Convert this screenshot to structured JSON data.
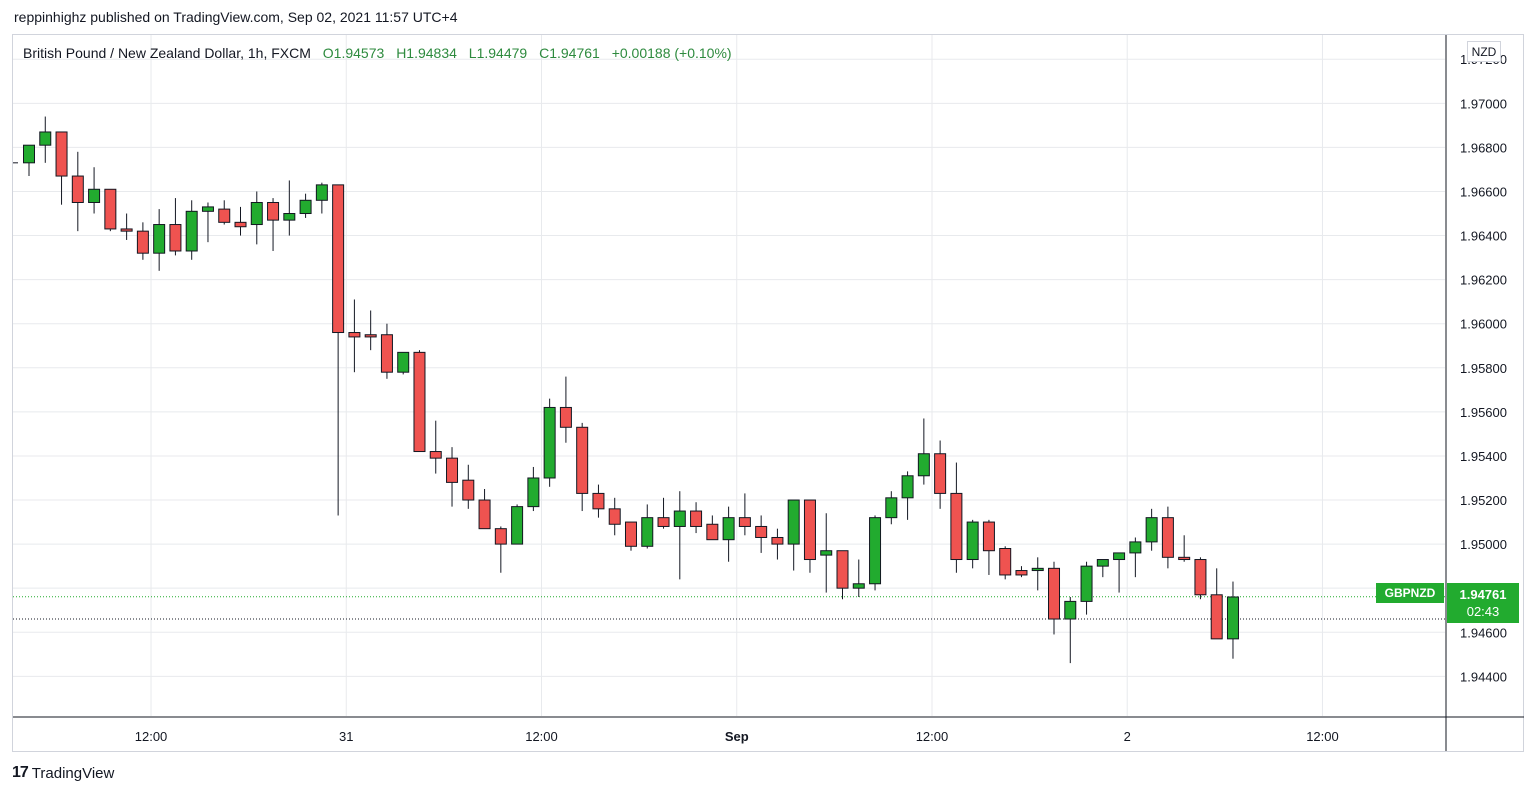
{
  "header": {
    "published_line": "reppinhighz published on TradingView.com, Sep 02, 2021 11:57 UTC+4"
  },
  "legend": {
    "symbol_desc": "British Pound / New Zealand Dollar, 1h, FXCM",
    "open": "O1.94573",
    "high": "H1.94834",
    "low": "L1.94479",
    "close": "C1.94761",
    "change": "+0.00188 (+0.10%)"
  },
  "currency": "NZD",
  "price_tag": {
    "symbol": "GBPNZD",
    "price": "1.94761",
    "countdown": "02:43"
  },
  "footer": {
    "logo": "17",
    "brand": "TradingView"
  },
  "colors": {
    "up": "#22ab2f",
    "down": "#ef5350",
    "grid": "#e8eaed",
    "axis_text": "#131722"
  },
  "chart_data": {
    "type": "candlestick",
    "title": "British Pound / New Zealand Dollar, 1h, FXCM",
    "x_tick_labels": [
      "12:00",
      "31",
      "12:00",
      "Sep",
      "12:00",
      "2",
      "12:00"
    ],
    "x_tick_index": [
      7.5,
      19.5,
      31.5,
      43.5,
      55.5,
      67.5,
      79.5
    ],
    "y_tick_labels": [
      "1.97200",
      "1.97000",
      "1.96800",
      "1.96600",
      "1.96400",
      "1.96200",
      "1.96000",
      "1.95800",
      "1.95600",
      "1.95400",
      "1.95200",
      "1.95000",
      "1.94800",
      "1.94600",
      "1.94400"
    ],
    "ylim": [
      1.9422,
      1.9731
    ],
    "last_price": 1.94761,
    "dotted_level": 1.9466,
    "candles": [
      {
        "o": 1.9673,
        "h": 1.9681,
        "l": 1.9667,
        "c": 1.9681
      },
      {
        "o": 1.9681,
        "h": 1.9694,
        "l": 1.9673,
        "c": 1.9687
      },
      {
        "o": 1.9687,
        "h": 1.9687,
        "l": 1.9654,
        "c": 1.9667
      },
      {
        "o": 1.9667,
        "h": 1.9678,
        "l": 1.9642,
        "c": 1.9655
      },
      {
        "o": 1.9655,
        "h": 1.9671,
        "l": 1.965,
        "c": 1.9661
      },
      {
        "o": 1.9661,
        "h": 1.9661,
        "l": 1.9642,
        "c": 1.9643
      },
      {
        "o": 1.9643,
        "h": 1.965,
        "l": 1.9638,
        "c": 1.9642
      },
      {
        "o": 1.9642,
        "h": 1.9646,
        "l": 1.9629,
        "c": 1.9632
      },
      {
        "o": 1.9632,
        "h": 1.9652,
        "l": 1.9624,
        "c": 1.9645
      },
      {
        "o": 1.9645,
        "h": 1.9657,
        "l": 1.9631,
        "c": 1.9633
      },
      {
        "o": 1.9633,
        "h": 1.9656,
        "l": 1.9629,
        "c": 1.9651
      },
      {
        "o": 1.9651,
        "h": 1.9655,
        "l": 1.9637,
        "c": 1.9653
      },
      {
        "o": 1.9652,
        "h": 1.9656,
        "l": 1.9645,
        "c": 1.9646
      },
      {
        "o": 1.9646,
        "h": 1.9653,
        "l": 1.964,
        "c": 1.9644
      },
      {
        "o": 1.9645,
        "h": 1.966,
        "l": 1.9636,
        "c": 1.9655
      },
      {
        "o": 1.9655,
        "h": 1.9657,
        "l": 1.9633,
        "c": 1.9647
      },
      {
        "o": 1.9647,
        "h": 1.9665,
        "l": 1.964,
        "c": 1.965
      },
      {
        "o": 1.965,
        "h": 1.9659,
        "l": 1.9648,
        "c": 1.9656
      },
      {
        "o": 1.9656,
        "h": 1.9664,
        "l": 1.965,
        "c": 1.9663
      },
      {
        "o": 1.9663,
        "h": 1.9663,
        "l": 1.9513,
        "c": 1.9596
      },
      {
        "o": 1.9596,
        "h": 1.9611,
        "l": 1.9578,
        "c": 1.9594
      },
      {
        "o": 1.9595,
        "h": 1.9606,
        "l": 1.9588,
        "c": 1.9594
      },
      {
        "o": 1.9595,
        "h": 1.96,
        "l": 1.9575,
        "c": 1.9578
      },
      {
        "o": 1.9578,
        "h": 1.9587,
        "l": 1.9577,
        "c": 1.9587
      },
      {
        "o": 1.9587,
        "h": 1.9588,
        "l": 1.9542,
        "c": 1.9542
      },
      {
        "o": 1.9542,
        "h": 1.9556,
        "l": 1.9532,
        "c": 1.9539
      },
      {
        "o": 1.9539,
        "h": 1.9544,
        "l": 1.9517,
        "c": 1.9528
      },
      {
        "o": 1.9529,
        "h": 1.9536,
        "l": 1.9516,
        "c": 1.952
      },
      {
        "o": 1.952,
        "h": 1.9525,
        "l": 1.9508,
        "c": 1.9507
      },
      {
        "o": 1.9507,
        "h": 1.9508,
        "l": 1.9487,
        "c": 1.95
      },
      {
        "o": 1.95,
        "h": 1.9518,
        "l": 1.9501,
        "c": 1.9517
      },
      {
        "o": 1.9517,
        "h": 1.9535,
        "l": 1.9515,
        "c": 1.953
      },
      {
        "o": 1.953,
        "h": 1.9566,
        "l": 1.9526,
        "c": 1.9562
      },
      {
        "o": 1.9562,
        "h": 1.9576,
        "l": 1.9546,
        "c": 1.9553
      },
      {
        "o": 1.9553,
        "h": 1.9555,
        "l": 1.9515,
        "c": 1.9523
      },
      {
        "o": 1.9523,
        "h": 1.9527,
        "l": 1.9512,
        "c": 1.9516
      },
      {
        "o": 1.9516,
        "h": 1.9521,
        "l": 1.9504,
        "c": 1.9509
      },
      {
        "o": 1.951,
        "h": 1.951,
        "l": 1.9497,
        "c": 1.9499
      },
      {
        "o": 1.9499,
        "h": 1.9518,
        "l": 1.9498,
        "c": 1.9512
      },
      {
        "o": 1.9512,
        "h": 1.9521,
        "l": 1.9507,
        "c": 1.9508
      },
      {
        "o": 1.9508,
        "h": 1.9524,
        "l": 1.9484,
        "c": 1.9515
      },
      {
        "o": 1.9515,
        "h": 1.9519,
        "l": 1.9505,
        "c": 1.9508
      },
      {
        "o": 1.9509,
        "h": 1.9513,
        "l": 1.9502,
        "c": 1.9502
      },
      {
        "o": 1.9502,
        "h": 1.9517,
        "l": 1.9492,
        "c": 1.9512
      },
      {
        "o": 1.9512,
        "h": 1.9523,
        "l": 1.9504,
        "c": 1.9508
      },
      {
        "o": 1.9508,
        "h": 1.9513,
        "l": 1.9496,
        "c": 1.9503
      },
      {
        "o": 1.9503,
        "h": 1.9507,
        "l": 1.9493,
        "c": 1.95
      },
      {
        "o": 1.95,
        "h": 1.9518,
        "l": 1.9488,
        "c": 1.952
      },
      {
        "o": 1.952,
        "h": 1.952,
        "l": 1.9487,
        "c": 1.9493
      },
      {
        "o": 1.9495,
        "h": 1.9514,
        "l": 1.9478,
        "c": 1.9497
      },
      {
        "o": 1.9497,
        "h": 1.9497,
        "l": 1.9475,
        "c": 1.948
      },
      {
        "o": 1.948,
        "h": 1.9493,
        "l": 1.9476,
        "c": 1.9482
      },
      {
        "o": 1.9482,
        "h": 1.9513,
        "l": 1.9479,
        "c": 1.9512
      },
      {
        "o": 1.9512,
        "h": 1.9524,
        "l": 1.9509,
        "c": 1.9521
      },
      {
        "o": 1.9521,
        "h": 1.9533,
        "l": 1.9511,
        "c": 1.9531
      },
      {
        "o": 1.9531,
        "h": 1.9557,
        "l": 1.9527,
        "c": 1.9541
      },
      {
        "o": 1.9541,
        "h": 1.9547,
        "l": 1.9516,
        "c": 1.9523
      },
      {
        "o": 1.9523,
        "h": 1.9537,
        "l": 1.9487,
        "c": 1.9493
      },
      {
        "o": 1.9493,
        "h": 1.9511,
        "l": 1.9489,
        "c": 1.951
      },
      {
        "o": 1.951,
        "h": 1.9511,
        "l": 1.9486,
        "c": 1.9497
      },
      {
        "o": 1.9498,
        "h": 1.9499,
        "l": 1.9484,
        "c": 1.9486
      },
      {
        "o": 1.9488,
        "h": 1.949,
        "l": 1.9485,
        "c": 1.9486
      },
      {
        "o": 1.9488,
        "h": 1.9494,
        "l": 1.9479,
        "c": 1.9489
      },
      {
        "o": 1.9489,
        "h": 1.9492,
        "l": 1.9459,
        "c": 1.9466
      },
      {
        "o": 1.9466,
        "h": 1.9476,
        "l": 1.9446,
        "c": 1.9474
      },
      {
        "o": 1.9474,
        "h": 1.9492,
        "l": 1.9468,
        "c": 1.949
      },
      {
        "o": 1.949,
        "h": 1.9493,
        "l": 1.9485,
        "c": 1.9493
      },
      {
        "o": 1.9493,
        "h": 1.9496,
        "l": 1.9478,
        "c": 1.9496
      },
      {
        "o": 1.9496,
        "h": 1.9503,
        "l": 1.9485,
        "c": 1.9501
      },
      {
        "o": 1.9501,
        "h": 1.9516,
        "l": 1.9497,
        "c": 1.9512
      },
      {
        "o": 1.9512,
        "h": 1.9517,
        "l": 1.9489,
        "c": 1.9494
      },
      {
        "o": 1.9494,
        "h": 1.9504,
        "l": 1.9492,
        "c": 1.9493
      },
      {
        "o": 1.9493,
        "h": 1.9494,
        "l": 1.9475,
        "c": 1.9477
      },
      {
        "o": 1.9477,
        "h": 1.9489,
        "l": 1.9457,
        "c": 1.9457
      },
      {
        "o": 1.9457,
        "h": 1.9483,
        "l": 1.9448,
        "c": 1.9476
      }
    ]
  }
}
